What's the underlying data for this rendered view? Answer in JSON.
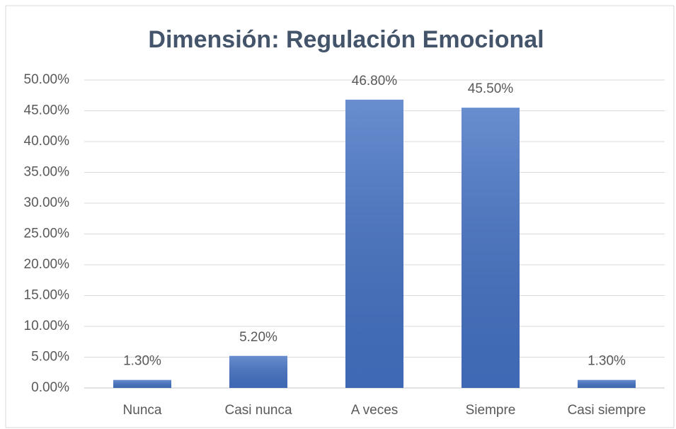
{
  "chart_data": {
    "type": "bar",
    "title": "Dimensión: Regulación Emocional",
    "categories": [
      "Nunca",
      "Casi nunca",
      "A veces",
      "Siempre",
      "Casi siempre"
    ],
    "values": [
      1.3,
      5.2,
      46.8,
      45.5,
      1.3
    ],
    "value_labels": [
      "1.30%",
      "5.20%",
      "46.80%",
      "45.50%",
      "1.30%"
    ],
    "color": "#4472c4",
    "ylim": [
      0,
      50
    ],
    "yticks": [
      {
        "value": 0,
        "label": "0.00%"
      },
      {
        "value": 5,
        "label": "5.00%"
      },
      {
        "value": 10,
        "label": "10.00%"
      },
      {
        "value": 15,
        "label": "15.00%"
      },
      {
        "value": 20,
        "label": "20.00%"
      },
      {
        "value": 25,
        "label": "25.00%"
      },
      {
        "value": 30,
        "label": "30.00%"
      },
      {
        "value": 35,
        "label": "35.00%"
      },
      {
        "value": 40,
        "label": "40.00%"
      },
      {
        "value": 45,
        "label": "45.00%"
      },
      {
        "value": 50,
        "label": "50.00%"
      }
    ],
    "grid": true
  }
}
